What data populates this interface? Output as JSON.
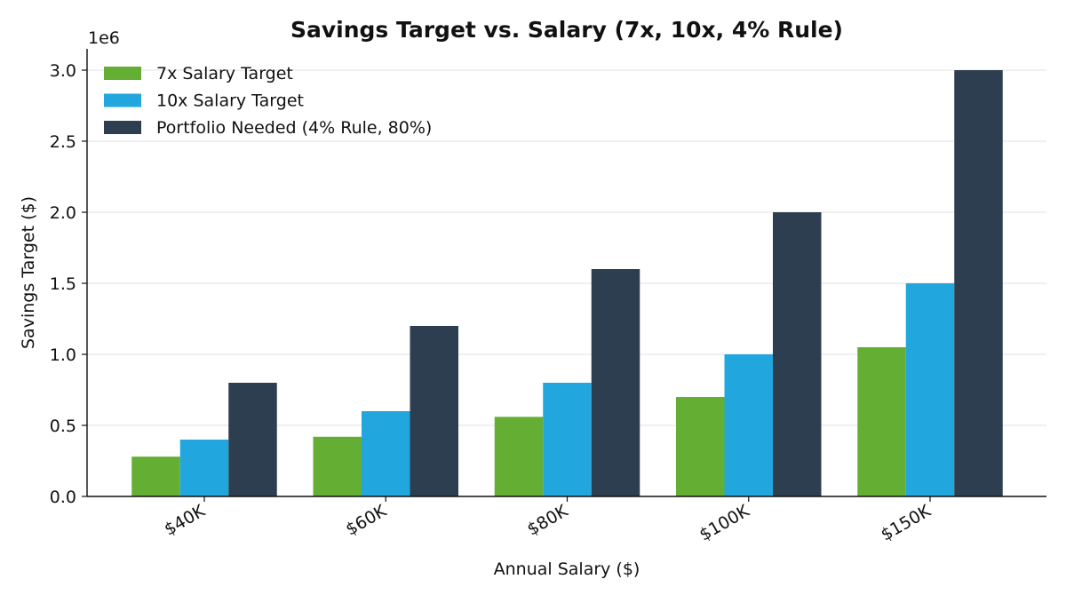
{
  "chart_data": {
    "type": "bar",
    "title": "Savings Target vs. Salary (7x, 10x, 4% Rule)",
    "xlabel": "Annual Salary ($)",
    "ylabel": "Savings Target ($)",
    "y_offset_label": "1e6",
    "categories": [
      "$40K",
      "$60K",
      "$80K",
      "$100K",
      "$150K"
    ],
    "ylim": [
      0,
      3.15
    ],
    "yticks": [
      0.0,
      0.5,
      1.0,
      1.5,
      2.0,
      2.5,
      3.0
    ],
    "ytick_labels": [
      "0.0",
      "0.5",
      "1.0",
      "1.5",
      "2.0",
      "2.5",
      "3.0"
    ],
    "grid": "horizontal",
    "legend_position": "top-left",
    "series": [
      {
        "name": "7x Salary Target",
        "color": "#64ae34",
        "values": [
          280000,
          420000,
          560000,
          700000,
          1050000
        ]
      },
      {
        "name": "10x Salary Target",
        "color": "#21a7de",
        "values": [
          400000,
          600000,
          800000,
          1000000,
          1500000
        ]
      },
      {
        "name": "Portfolio Needed (4% Rule, 80%)",
        "color": "#2d3e50",
        "values": [
          800000,
          1200000,
          1600000,
          2000000,
          3000000
        ]
      }
    ]
  }
}
